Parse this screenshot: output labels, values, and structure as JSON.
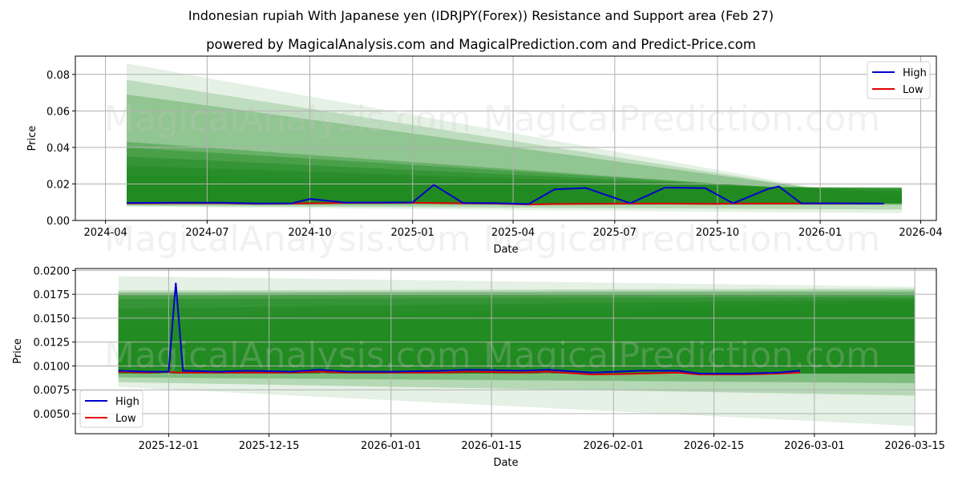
{
  "header": {
    "title": "Indonesian rupiah With Japanese yen (IDRJPY(Forex)) Resistance and Support area (Feb 27)",
    "subtitle": "powered by MagicalAnalysis.com and MagicalPrediction.com and Predict-Price.com"
  },
  "watermarks": [
    "MagicalAnalysis.com",
    "MagicalPrediction.com"
  ],
  "colors": {
    "high": "#0000cc",
    "low": "#dd0000",
    "band": "#228B22",
    "grid": "#b0b0b0"
  },
  "chart_data": [
    {
      "type": "line",
      "title": "",
      "xlabel": "Date",
      "ylabel": "Price",
      "ylim": [
        0.0,
        0.09
      ],
      "grid": true,
      "legend": {
        "position": "upper right",
        "entries": [
          "High",
          "Low"
        ]
      },
      "x_ticks": [
        "2024-04",
        "2024-07",
        "2024-10",
        "2025-01",
        "2025-04",
        "2025-07",
        "2025-10",
        "2026-01",
        "2026-04"
      ],
      "y_ticks": [
        "0.00",
        "0.02",
        "0.04",
        "0.06",
        "0.08"
      ],
      "x": [
        "2024-04-20",
        "2024-06-01",
        "2024-07-15",
        "2024-08-15",
        "2024-09-15",
        "2024-10-01",
        "2024-11-01",
        "2024-12-01",
        "2025-01-01",
        "2025-01-20",
        "2025-02-15",
        "2025-03-15",
        "2025-04-15",
        "2025-05-08",
        "2025-06-05",
        "2025-07-15",
        "2025-08-15",
        "2025-09-20",
        "2025-10-15",
        "2025-11-15",
        "2025-11-25",
        "2025-12-15",
        "2026-01-15",
        "2026-02-27"
      ],
      "series": [
        {
          "name": "High",
          "values": [
            0.0096,
            0.0097,
            0.0097,
            0.0093,
            0.0094,
            0.0118,
            0.0098,
            0.0098,
            0.0099,
            0.0195,
            0.0096,
            0.0095,
            0.009,
            0.017,
            0.0178,
            0.0094,
            0.018,
            0.0177,
            0.0094,
            0.0172,
            0.0186,
            0.0094,
            0.0094,
            0.0093
          ]
        },
        {
          "name": "Low",
          "values": [
            0.0094,
            0.0095,
            0.0095,
            0.0091,
            0.0092,
            0.0094,
            0.0096,
            0.0096,
            0.0097,
            0.0096,
            0.0094,
            0.0093,
            0.0087,
            0.009,
            0.0091,
            0.0092,
            0.0093,
            0.0091,
            0.0092,
            0.0093,
            0.0093,
            0.0093,
            0.0093,
            0.0092
          ]
        }
      ],
      "bands": {
        "start": "2024-04-20",
        "end": "2026-03-15",
        "upper_start": [
          0.086,
          0.077,
          0.069,
          0.043,
          0.04,
          0.035,
          0.03,
          0.025,
          0.02,
          0.018
        ],
        "upper_end": [
          0.0095,
          0.01,
          0.011,
          0.013,
          0.014,
          0.015,
          0.016,
          0.017,
          0.018,
          0.018
        ],
        "lower_start": [
          0.0075,
          0.008,
          0.0085
        ],
        "lower_end": [
          0.004,
          0.006,
          0.0085
        ]
      }
    },
    {
      "type": "line",
      "title": "",
      "xlabel": "Date",
      "ylabel": "Price",
      "ylim": [
        0.0029,
        0.0202
      ],
      "grid": true,
      "legend": {
        "position": "lower left",
        "entries": [
          "High",
          "Low"
        ]
      },
      "x_ticks": [
        "2025-12-01",
        "2025-12-15",
        "2026-01-01",
        "2026-01-15",
        "2026-02-01",
        "2026-02-15",
        "2026-03-01",
        "2026-03-15"
      ],
      "y_ticks": [
        "0.0050",
        "0.0075",
        "0.0100",
        "0.0125",
        "0.0150",
        "0.0175",
        "0.0200"
      ],
      "x": [
        "2025-11-24",
        "2025-11-28",
        "2025-12-01",
        "2025-12-02",
        "2025-12-03",
        "2025-12-08",
        "2025-12-12",
        "2025-12-18",
        "2025-12-22",
        "2025-12-26",
        "2026-01-01",
        "2026-01-08",
        "2026-01-12",
        "2026-01-19",
        "2026-01-23",
        "2026-01-29",
        "2026-02-05",
        "2026-02-10",
        "2026-02-13",
        "2026-02-19",
        "2026-02-24",
        "2026-02-27"
      ],
      "series": [
        {
          "name": "High",
          "values": [
            0.0095,
            0.0094,
            0.0094,
            0.0187,
            0.0095,
            0.0094,
            0.0095,
            0.0094,
            0.0096,
            0.0094,
            0.0094,
            0.0095,
            0.0096,
            0.0095,
            0.0096,
            0.0093,
            0.0095,
            0.0095,
            0.0092,
            0.0092,
            0.0093,
            0.0095
          ]
        },
        {
          "name": "Low",
          "values": [
            0.0094,
            0.0093,
            0.0094,
            0.0093,
            0.0093,
            0.0093,
            0.0093,
            0.0093,
            0.0094,
            0.0093,
            0.0093,
            0.0093,
            0.0094,
            0.0093,
            0.0094,
            0.0091,
            0.0092,
            0.0093,
            0.0091,
            0.0091,
            0.0092,
            0.0093
          ]
        }
      ],
      "bands": {
        "start": "2025-11-24",
        "end": "2026-03-15",
        "upper_start": [
          0.0194,
          0.0179,
          0.0177,
          0.0176,
          0.0174,
          0.017,
          0.016,
          0.015,
          0.014,
          0.011,
          0.01
        ],
        "upper_end": [
          0.0183,
          0.0181,
          0.0179,
          0.0177,
          0.0175,
          0.0172,
          0.017,
          0.0168,
          0.0165,
          0.012,
          0.01
        ],
        "lower_start": [
          0.0078,
          0.0083,
          0.0088
        ],
        "lower_end": [
          0.0037,
          0.0069,
          0.0082
        ]
      }
    }
  ]
}
